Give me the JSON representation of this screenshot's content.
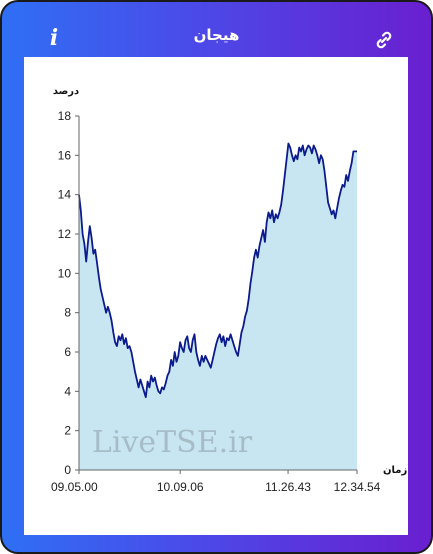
{
  "app": {
    "title": "هیجان",
    "info_icon": "info-icon",
    "link_icon": "link-icon",
    "gradient_start": "#2f6ff5",
    "gradient_end": "#6a1fd0"
  },
  "chart_data": {
    "type": "area",
    "title": "",
    "ylabel": "درصد",
    "xlabel": "زمان",
    "ylim": [
      0,
      18
    ],
    "yticks": [
      "0",
      "2",
      "4",
      "6",
      "8",
      "10",
      "12",
      "14",
      "16",
      "18"
    ],
    "xticks": [
      "09.05.00",
      "10.09.06",
      "11.26.43",
      "12.34.54"
    ],
    "watermark": "LiveTSE.ir",
    "line_color": "#0b1a8c",
    "fill_color": "#c8e6f2",
    "grid": false,
    "series": [
      {
        "values": [
          14.0,
          13.2,
          12.0,
          11.5,
          10.6,
          11.6,
          12.4,
          11.8,
          11.0,
          11.2,
          10.5,
          9.8,
          9.2,
          8.8,
          8.4,
          8.0,
          8.3,
          8.0,
          7.6,
          7.0,
          6.5,
          6.3,
          6.8,
          6.6,
          6.9,
          6.4,
          6.7,
          6.2,
          6.3,
          6.0,
          5.5,
          5.0,
          4.6,
          4.2,
          4.6,
          4.3,
          4.0,
          3.7,
          4.5,
          4.2,
          4.8,
          4.5,
          4.7,
          4.3,
          4.0,
          3.9,
          4.2,
          4.1,
          4.4,
          4.8,
          5.0,
          5.6,
          5.3,
          6.0,
          5.5,
          5.8,
          6.5,
          6.2,
          6.0,
          6.6,
          6.8,
          6.2,
          6.0,
          6.6,
          6.9,
          6.0,
          5.6,
          5.3,
          5.8,
          5.5,
          5.8,
          5.6,
          5.4,
          5.2,
          5.6,
          6.0,
          6.4,
          6.7,
          6.9,
          6.5,
          6.8,
          6.3,
          6.7,
          6.6,
          6.9,
          6.6,
          6.3,
          6.0,
          5.8,
          6.4,
          7.0,
          7.3,
          7.8,
          8.1,
          8.7,
          9.5,
          10.1,
          10.8,
          11.2,
          10.8,
          11.4,
          11.8,
          12.2,
          11.6,
          12.6,
          13.1,
          12.8,
          13.2,
          12.6,
          13.0,
          12.8,
          13.1,
          13.5,
          14.2,
          15.0,
          15.8,
          16.6,
          16.4,
          16.0,
          15.7,
          16.0,
          15.8,
          16.4,
          16.2,
          16.5,
          16.0,
          16.3,
          16.5,
          16.4,
          16.1,
          16.5,
          16.3,
          16.0,
          15.6,
          16.0,
          15.8,
          15.2,
          14.4,
          13.6,
          13.3,
          13.0,
          13.2,
          12.8,
          13.3,
          13.8,
          14.2,
          14.5,
          14.4,
          15.0,
          14.7,
          15.2,
          15.6,
          16.2,
          16.2,
          16.2
        ]
      }
    ]
  }
}
